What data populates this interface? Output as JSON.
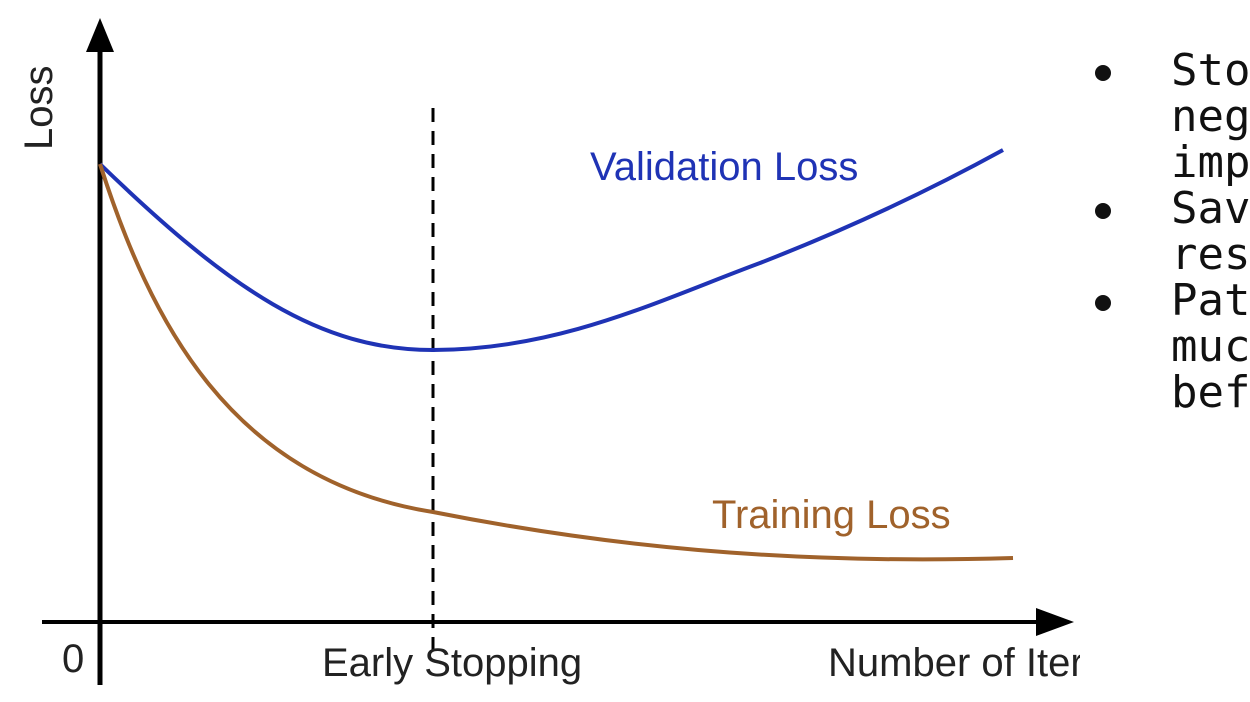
{
  "diagram": {
    "y_axis_label": "Loss",
    "origin_label": "0",
    "x_marker_label": "Early Stopping",
    "x_axis_label": "Number of Iterations",
    "validation_label": "Validation Loss",
    "training_label": "Training Loss",
    "colors": {
      "validation": "#1f33b5",
      "training": "#a0622b",
      "axis": "#000000",
      "text": "#222222"
    }
  },
  "bullets": [
    {
      "lines": [
        "Sto",
        "neg",
        "imp"
      ]
    },
    {
      "lines": [
        "Sav",
        "res"
      ]
    },
    {
      "lines": [
        "Pat",
        "muc",
        "bef"
      ]
    }
  ]
}
